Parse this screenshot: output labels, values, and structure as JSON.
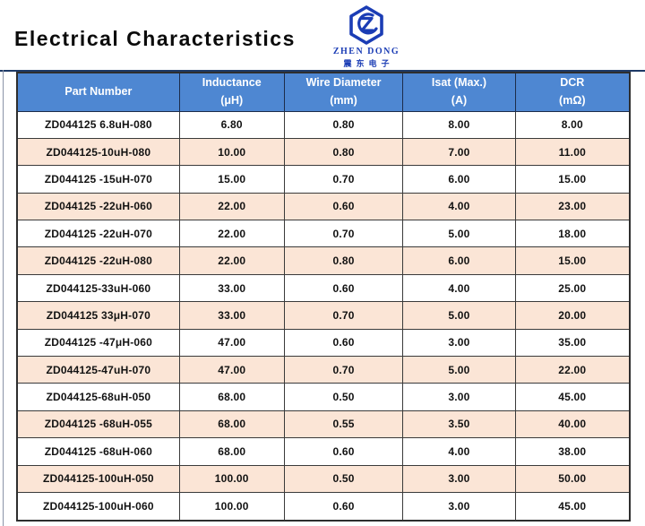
{
  "page": {
    "title": "Electrical Characteristics"
  },
  "logo": {
    "text": "ZHEN DONG",
    "subtext": "震东电子",
    "color": "#1b3db5"
  },
  "colors": {
    "header_bg": "#4e87d2",
    "header_text": "#ffffff",
    "row_alt_bg": "#fbe5d6",
    "table_border": "#3a3a3a",
    "top_rule": "#1e3a66"
  },
  "table": {
    "columns": [
      {
        "title": "Part Number",
        "unit": ""
      },
      {
        "title": "Inductance",
        "unit": "(μH)"
      },
      {
        "title": "Wire Diameter",
        "unit": "(mm)"
      },
      {
        "title": "Isat (Max.)",
        "unit": "(A)"
      },
      {
        "title": "DCR",
        "unit": "(mΩ)"
      }
    ],
    "rows": [
      [
        "ZD044125 6.8uH-080",
        "6.80",
        "0.80",
        "8.00",
        "8.00"
      ],
      [
        "ZD044125-10uH-080",
        "10.00",
        "0.80",
        "7.00",
        "11.00"
      ],
      [
        "ZD044125 -15uH-070",
        "15.00",
        "0.70",
        "6.00",
        "15.00"
      ],
      [
        "ZD044125 -22uH-060",
        "22.00",
        "0.60",
        "4.00",
        "23.00"
      ],
      [
        "ZD044125 -22uH-070",
        "22.00",
        "0.70",
        "5.00",
        "18.00"
      ],
      [
        "ZD044125 -22uH-080",
        "22.00",
        "0.80",
        "6.00",
        "15.00"
      ],
      [
        "ZD044125-33uH-060",
        "33.00",
        "0.60",
        "4.00",
        "25.00"
      ],
      [
        "ZD044125 33μH-070",
        "33.00",
        "0.70",
        "5.00",
        "20.00"
      ],
      [
        "ZD044125 -47μH-060",
        "47.00",
        "0.60",
        "3.00",
        "35.00"
      ],
      [
        "ZD044125-47uH-070",
        "47.00",
        "0.70",
        "5.00",
        "22.00"
      ],
      [
        "ZD044125-68uH-050",
        "68.00",
        "0.50",
        "3.00",
        "45.00"
      ],
      [
        "ZD044125 -68uH-055",
        "68.00",
        "0.55",
        "3.50",
        "40.00"
      ],
      [
        "ZD044125 -68uH-060",
        "68.00",
        "0.60",
        "4.00",
        "38.00"
      ],
      [
        "ZD044125-100uH-050",
        "100.00",
        "0.50",
        "3.00",
        "50.00"
      ],
      [
        "ZD044125-100uH-060",
        "100.00",
        "0.60",
        "3.00",
        "45.00"
      ]
    ]
  }
}
